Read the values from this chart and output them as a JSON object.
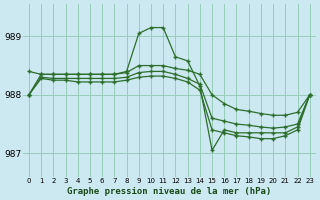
{
  "title": "Graphe pression niveau de la mer (hPa)",
  "bg_color": "#cce8f0",
  "grid_color": "#99ccbb",
  "line_color": "#2d6e2d",
  "x_labels": [
    "0",
    "1",
    "2",
    "3",
    "4",
    "5",
    "6",
    "7",
    "8",
    "9",
    "10",
    "11",
    "12",
    "13",
    "14",
    "15",
    "16",
    "17",
    "18",
    "19",
    "20",
    "21",
    "22",
    "23"
  ],
  "ylim": [
    986.6,
    989.55
  ],
  "yticks": [
    987,
    988,
    989
  ],
  "series": [
    [
      988.4,
      988.35,
      988.35,
      988.35,
      988.35,
      988.35,
      988.35,
      988.35,
      988.4,
      989.05,
      989.15,
      989.15,
      988.65,
      988.58,
      988.15,
      987.05,
      987.4,
      987.35,
      987.35,
      987.35,
      987.35,
      987.35,
      987.45,
      988.0
    ],
    [
      988.0,
      988.35,
      988.35,
      988.35,
      988.35,
      988.35,
      988.35,
      988.35,
      988.38,
      988.5,
      988.5,
      988.5,
      988.45,
      988.42,
      988.35,
      988.0,
      987.85,
      987.75,
      987.72,
      987.68,
      987.65,
      987.65,
      987.7,
      988.0
    ],
    [
      988.0,
      988.3,
      988.28,
      988.28,
      988.28,
      988.28,
      988.28,
      988.28,
      988.3,
      988.38,
      988.4,
      988.4,
      988.35,
      988.28,
      988.18,
      987.6,
      987.55,
      987.5,
      987.48,
      987.45,
      987.43,
      987.45,
      987.5,
      988.0
    ],
    [
      988.0,
      988.28,
      988.25,
      988.25,
      988.22,
      988.22,
      988.22,
      988.22,
      988.25,
      988.3,
      988.32,
      988.32,
      988.28,
      988.22,
      988.08,
      987.4,
      987.35,
      987.3,
      987.28,
      987.25,
      987.25,
      987.3,
      987.4,
      988.0
    ]
  ]
}
